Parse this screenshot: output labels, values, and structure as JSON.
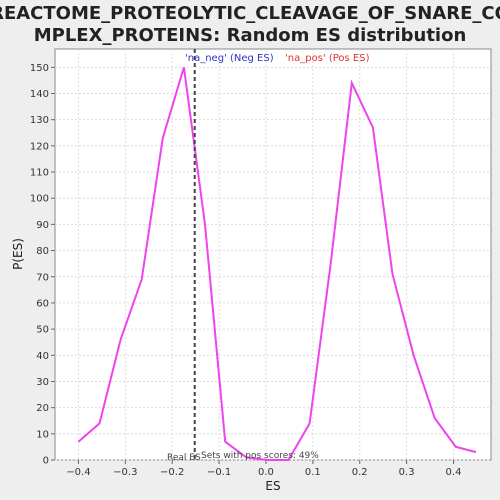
{
  "chart_data": {
    "type": "line",
    "title_line1": "REACTOME_PROTEOLYTIC_CLEAVAGE_OF_SNARE_CO",
    "title_line2": "MPLEX_PROTEINS: Random ES distribution",
    "xlabel": "ES",
    "ylabel": "P(ES)",
    "xlim": [
      -0.45,
      0.48
    ],
    "ylim": [
      0,
      157
    ],
    "xticks": [
      -0.4,
      -0.3,
      -0.2,
      -0.1,
      0.0,
      0.1,
      0.2,
      0.3,
      0.4
    ],
    "xtick_labels": [
      "−0.4",
      "−0.3",
      "−0.2",
      "−0.1",
      "0.0",
      "0.1",
      "0.2",
      "0.3",
      "0.4"
    ],
    "yticks": [
      0,
      10,
      20,
      30,
      40,
      50,
      60,
      70,
      80,
      90,
      100,
      110,
      120,
      130,
      140,
      150
    ],
    "grid": true,
    "line_color": "#ee44ee",
    "series": [
      {
        "x": [
          -0.4,
          -0.355,
          -0.31,
          -0.265,
          -0.22,
          -0.175,
          -0.13,
          -0.087,
          -0.042,
          0.003,
          0.048,
          0.093,
          0.138,
          0.183,
          0.228,
          0.27,
          0.315,
          0.36,
          0.405,
          0.448
        ],
        "values": [
          7,
          14,
          46,
          69,
          123,
          150,
          90,
          7,
          1,
          0,
          0,
          14,
          75,
          144,
          127,
          71,
          40,
          16,
          5,
          3
        ]
      }
    ],
    "real_es": -0.152,
    "real_es_line_color": "#444444",
    "real_es_label": "Real ES",
    "legend": [
      {
        "label": "'na_neg' (Neg ES)",
        "color": "#3333cc"
      },
      {
        "label": "'na_pos' (Pos ES)",
        "color": "#dd3333"
      }
    ],
    "annotation": "Sets with pos scores: 49%"
  }
}
